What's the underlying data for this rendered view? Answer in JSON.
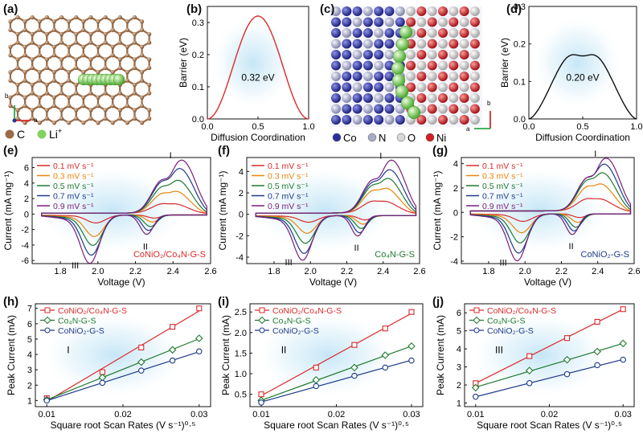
{
  "panel_labels": [
    "(a)",
    "(b)",
    "(c)",
    "(d)",
    "(e)",
    "(f)",
    "(g)",
    "(h)",
    "(i)",
    "(j)"
  ],
  "panel_a": {
    "legend": [
      {
        "symbol": "C",
        "color": "#9b6b46"
      },
      {
        "symbol": "Li",
        "superscript": "+",
        "color": "#7fd35e"
      }
    ],
    "axes": {
      "b": "b",
      "a": "a"
    }
  },
  "panel_c": {
    "legend": [
      {
        "symbol": "Co",
        "color": "#2b2f9e"
      },
      {
        "symbol": "N",
        "color": "#a9acc9"
      },
      {
        "symbol": "O",
        "color": "#d8d8d8"
      },
      {
        "symbol": "Ni",
        "color": "#d21f24"
      }
    ],
    "axes": {
      "b": "b",
      "a": "a"
    }
  },
  "colors": {
    "red": "#d92b2b",
    "orange": "#e8860c",
    "green": "#1f7a2e",
    "blue": "#1e3a8a",
    "purple": "#7a1f7a"
  },
  "chart_data": [
    {
      "id": "b",
      "type": "line",
      "xlabel": "Diffusion Coordination",
      "ylabel": "Barrier (eV)",
      "xlim": [
        0,
        1
      ],
      "ylim": [
        0,
        0.35
      ],
      "xticks": [
        "0.0",
        "0.5",
        "1.0"
      ],
      "yticks": [
        "0.0",
        "0.1",
        "0.2",
        "0.3"
      ],
      "annotation": "0.32 eV",
      "series": [
        {
          "name": "barrier",
          "color": "#d92b2b",
          "x": [
            0,
            0.1,
            0.2,
            0.3,
            0.4,
            0.5,
            0.6,
            0.7,
            0.8,
            0.9,
            1.0
          ],
          "y": [
            0,
            0.03,
            0.11,
            0.22,
            0.3,
            0.32,
            0.3,
            0.22,
            0.11,
            0.03,
            0
          ]
        }
      ]
    },
    {
      "id": "d",
      "type": "line",
      "xlabel": "Diffusion Coordination",
      "ylabel": "Barrier (eV)",
      "xlim": [
        0,
        1
      ],
      "ylim": [
        0,
        0.3
      ],
      "xticks": [
        "0.0",
        "0.5",
        "1.0"
      ],
      "yticks": [
        "0.0",
        "0.1",
        "0.2",
        "0.3"
      ],
      "annotation": "0.20 eV",
      "series": [
        {
          "name": "barrier",
          "color": "#111111",
          "x": [
            0,
            0.08,
            0.15,
            0.22,
            0.3,
            0.4,
            0.5,
            0.6,
            0.7,
            0.78,
            0.85,
            0.92,
            1.0
          ],
          "y": [
            0,
            0.05,
            0.14,
            0.19,
            0.205,
            0.18,
            0.17,
            0.18,
            0.205,
            0.19,
            0.14,
            0.05,
            0
          ]
        }
      ]
    },
    {
      "id": "e",
      "type": "line",
      "xlabel": "Voltage (V)",
      "ylabel": "Current (mA mg⁻¹)",
      "xlim": [
        1.65,
        2.6
      ],
      "ylim": [
        -6.4,
        7.3
      ],
      "xticks": [
        "1.8",
        "2.0",
        "2.2",
        "2.4",
        "2.6"
      ],
      "yticks": [
        "-6",
        "-4",
        "-2",
        "0",
        "2",
        "4",
        "6"
      ],
      "annotation": "CoNiO₂/Co₄N-G-S",
      "peak_labels": [
        "I",
        "II",
        "III"
      ],
      "legend": [
        "0.1 mV s⁻¹",
        "0.3 mV s⁻¹",
        "0.5 mV s⁻¹",
        "0.7 mV s⁻¹",
        "0.9 mV s⁻¹"
      ],
      "peaks": {
        "anodic": [
          1.2,
          2.8,
          4.2,
          5.7,
          6.8
        ],
        "cathodic_II": [
          -0.4,
          -0.9,
          -1.5,
          -2.0,
          -2.5
        ],
        "cathodic_III": [
          -1.0,
          -2.7,
          -3.8,
          -5.0,
          -6.0
        ]
      }
    },
    {
      "id": "f",
      "type": "line",
      "xlabel": "Voltage (V)",
      "ylabel": "Current (mA mg⁻¹)",
      "xlim": [
        1.65,
        2.6
      ],
      "ylim": [
        -4.6,
        5.3
      ],
      "xticks": [
        "1.8",
        "2.0",
        "2.2",
        "2.4",
        "2.6"
      ],
      "yticks": [
        "-4",
        "-2",
        "0",
        "2",
        "4"
      ],
      "annotation": "Co₄N-G-S",
      "peak_labels": [
        "I",
        "II",
        "III"
      ],
      "legend": [
        "0.1 mV s⁻¹",
        "0.3 mV s⁻¹",
        "0.5 mV s⁻¹",
        "0.7 mV s⁻¹",
        "0.9 mV s⁻¹"
      ],
      "peaks": {
        "anodic": [
          1.1,
          2.3,
          3.2,
          4.0,
          4.9
        ],
        "cathodic_II": [
          -0.4,
          -0.8,
          -1.2,
          -1.6,
          -1.9
        ],
        "cathodic_III": [
          -0.6,
          -1.6,
          -2.5,
          -3.4,
          -4.0
        ]
      }
    },
    {
      "id": "g",
      "type": "line",
      "xlabel": "Voltage (V)",
      "ylabel": "Current (mA mg⁻¹)",
      "xlim": [
        1.65,
        2.6
      ],
      "ylim": [
        -4.2,
        4.5
      ],
      "xticks": [
        "1.8",
        "2.0",
        "2.2",
        "2.4",
        "2.6"
      ],
      "yticks": [
        "-4",
        "-2",
        "0",
        "2",
        "4"
      ],
      "annotation": "CoNiO₂-G-S",
      "peak_labels": [
        "I",
        "II",
        "III"
      ],
      "legend": [
        "0.1 mV s⁻¹",
        "0.3 mV s⁻¹",
        "0.5 mV s⁻¹",
        "0.7 mV s⁻¹",
        "0.9 mV s⁻¹"
      ],
      "peaks": {
        "anodic": [
          1.0,
          2.2,
          3.1,
          3.8,
          4.3
        ],
        "cathodic_II": [
          -0.3,
          -0.7,
          -1.1,
          -1.4,
          -1.7
        ],
        "cathodic_III": [
          -0.6,
          -1.5,
          -2.3,
          -3.1,
          -3.7
        ]
      }
    },
    {
      "id": "h",
      "type": "scatter",
      "xlabel": "Square root Scan Rates (V s⁻¹)⁰·⁵",
      "ylabel": "Peak Current (mA)",
      "xlim": [
        0.0085,
        0.0315
      ],
      "ylim": [
        0.6,
        7.3
      ],
      "xticks": [
        "0.01",
        "0.02",
        "0.03"
      ],
      "yticks": [
        "1",
        "2",
        "3",
        "4",
        "5",
        "6",
        "7"
      ],
      "annotation": "I",
      "x": [
        0.01,
        0.0173,
        0.0224,
        0.0265,
        0.03
      ],
      "series": [
        {
          "name": "CoNiO₂/Co₄N-G-S",
          "marker": "square",
          "color": "#d92b2b",
          "values": [
            1.15,
            2.85,
            4.45,
            5.8,
            7.0
          ]
        },
        {
          "name": "Co₄N-G-S",
          "marker": "diamond",
          "color": "#1f7a2e",
          "values": [
            1.05,
            2.5,
            3.5,
            4.3,
            5.05
          ]
        },
        {
          "name": "CoNiO₂-G-S",
          "marker": "circle",
          "color": "#1e3a8a",
          "values": [
            1.0,
            2.15,
            2.95,
            3.6,
            4.2
          ]
        }
      ]
    },
    {
      "id": "i",
      "type": "scatter",
      "xlabel": "Square root Scan Rates (V s⁻¹)⁰·⁵",
      "ylabel": "Peak Current (mA)",
      "xlim": [
        0.0085,
        0.0315
      ],
      "ylim": [
        0.2,
        2.7
      ],
      "xticks": [
        "0.01",
        "0.02",
        "0.03"
      ],
      "yticks": [
        "0.5",
        "1.0",
        "1.5",
        "2.0",
        "2.5"
      ],
      "annotation": "II",
      "x": [
        0.01,
        0.0173,
        0.0224,
        0.0265,
        0.03
      ],
      "series": [
        {
          "name": "CoNiO₂/Co₄N-G-S",
          "marker": "square",
          "color": "#d92b2b",
          "values": [
            0.5,
            1.15,
            1.7,
            2.1,
            2.5
          ]
        },
        {
          "name": "Co₄N-G-S",
          "marker": "diamond",
          "color": "#1f7a2e",
          "values": [
            0.35,
            0.85,
            1.15,
            1.45,
            1.67
          ]
        },
        {
          "name": "CoNiO₂-G-S",
          "marker": "circle",
          "color": "#1e3a8a",
          "values": [
            0.3,
            0.7,
            0.95,
            1.15,
            1.32
          ]
        }
      ]
    },
    {
      "id": "j",
      "type": "scatter",
      "xlabel": "Square root Scan Rates (V s⁻¹)⁰·⁵",
      "ylabel": "Peak Current (mA)",
      "xlim": [
        0.0085,
        0.0315
      ],
      "ylim": [
        0.8,
        6.5
      ],
      "xticks": [
        "0.01",
        "0.02",
        "0.03"
      ],
      "yticks": [
        "1",
        "2",
        "3",
        "4",
        "5",
        "6"
      ],
      "annotation": "III",
      "x": [
        0.01,
        0.0173,
        0.0224,
        0.0265,
        0.03
      ],
      "series": [
        {
          "name": "CoNiO₂/Co₄N-G-S",
          "marker": "square",
          "color": "#d92b2b",
          "values": [
            2.1,
            3.6,
            4.6,
            5.5,
            6.2
          ]
        },
        {
          "name": "Co₄N-G-S",
          "marker": "diamond",
          "color": "#1f7a2e",
          "values": [
            1.85,
            2.8,
            3.4,
            3.85,
            4.3
          ]
        },
        {
          "name": "CoNiO₂-G-S",
          "marker": "circle",
          "color": "#1e3a8a",
          "values": [
            1.35,
            2.1,
            2.6,
            3.1,
            3.4
          ]
        }
      ]
    }
  ]
}
